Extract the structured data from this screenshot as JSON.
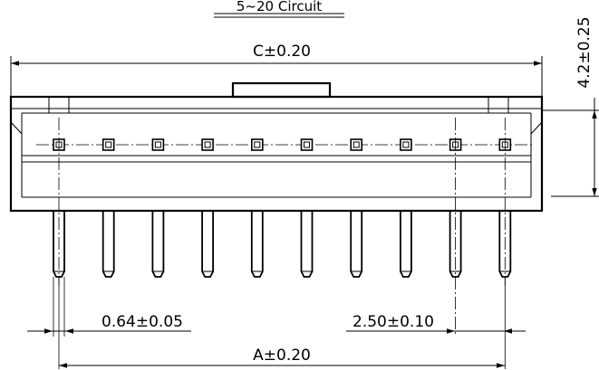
{
  "drawing": {
    "title": "5~20  Circuit",
    "pin_count_shown": 10,
    "dimensions": {
      "overall_c": "C±0.20",
      "height": "4.2±0.25",
      "pin_width": "0.64±0.05",
      "pitch": "2.50±0.10",
      "span_a": "A±0.20"
    }
  }
}
